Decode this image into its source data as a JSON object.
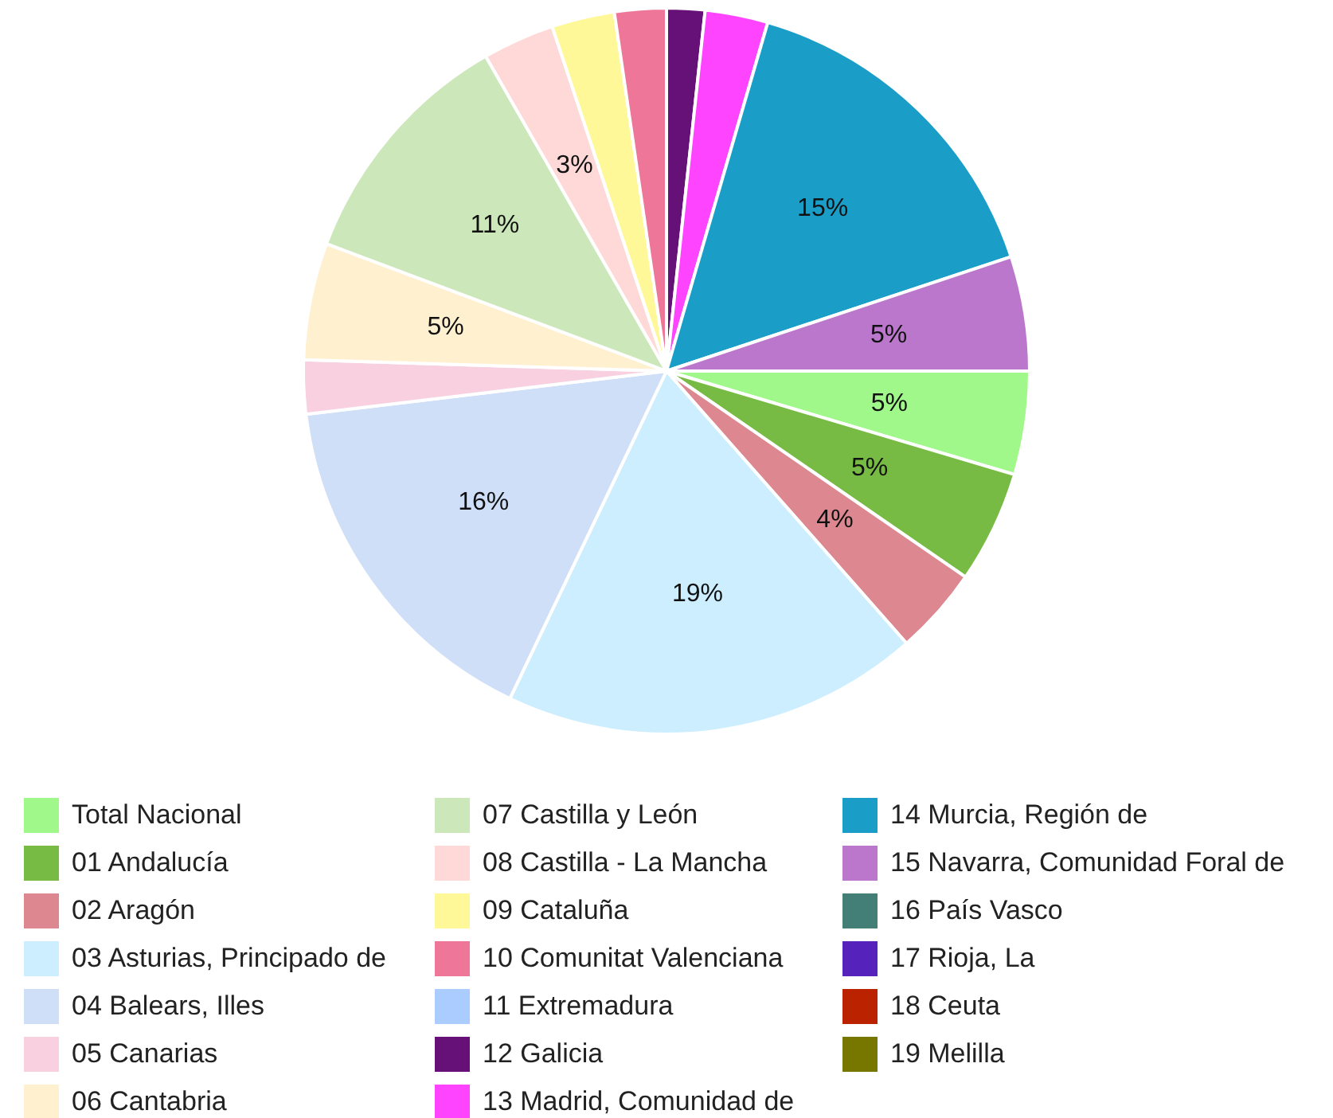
{
  "chart_data": {
    "type": "pie",
    "categories": [
      "Total Nacional",
      "01 Andalucía",
      "02 Aragón",
      "03 Asturias, Principado de",
      "04 Balears, Illes",
      "05 Canarias",
      "06 Cantabria",
      "07 Castilla y León",
      "08 Castilla - La Mancha",
      "09 Cataluña",
      "10 Comunitat Valenciana",
      "11 Extremadura",
      "12 Galicia",
      "13 Madrid, Comunidad de",
      "14 Murcia, Región de",
      "15 Navarra, Comunidad Foral de",
      "16 País Vasco",
      "17 Rioja, La",
      "18 Ceuta",
      "19 Melilla"
    ],
    "values": [
      4.6,
      5.0,
      3.9,
      18.6,
      16.0,
      2.4,
      5.2,
      11.0,
      3.2,
      2.8,
      2.3,
      0,
      1.7,
      2.8,
      15.4,
      5.1,
      0,
      0,
      0,
      0
    ],
    "value_labels": [
      "5%",
      "5%",
      "4%",
      "19%",
      "16%",
      null,
      "5%",
      "11%",
      "3%",
      null,
      null,
      null,
      null,
      null,
      "15%",
      "5%",
      null,
      null,
      null,
      null
    ],
    "colors": [
      "#a0f78a",
      "#77bb44",
      "#dd8890",
      "#cceeff",
      "#d0dff8",
      "#f8d0e0",
      "#fff0d0",
      "#cce8bb",
      "#ffd8d8",
      "#fff899",
      "#ee7799",
      "#aaccff",
      "#661177",
      "#ff44ff",
      "#1a9ec8",
      "#bb77cc",
      "#447f77",
      "#5522bb",
      "#bb2200",
      "#777700"
    ],
    "legend": "bottom"
  }
}
